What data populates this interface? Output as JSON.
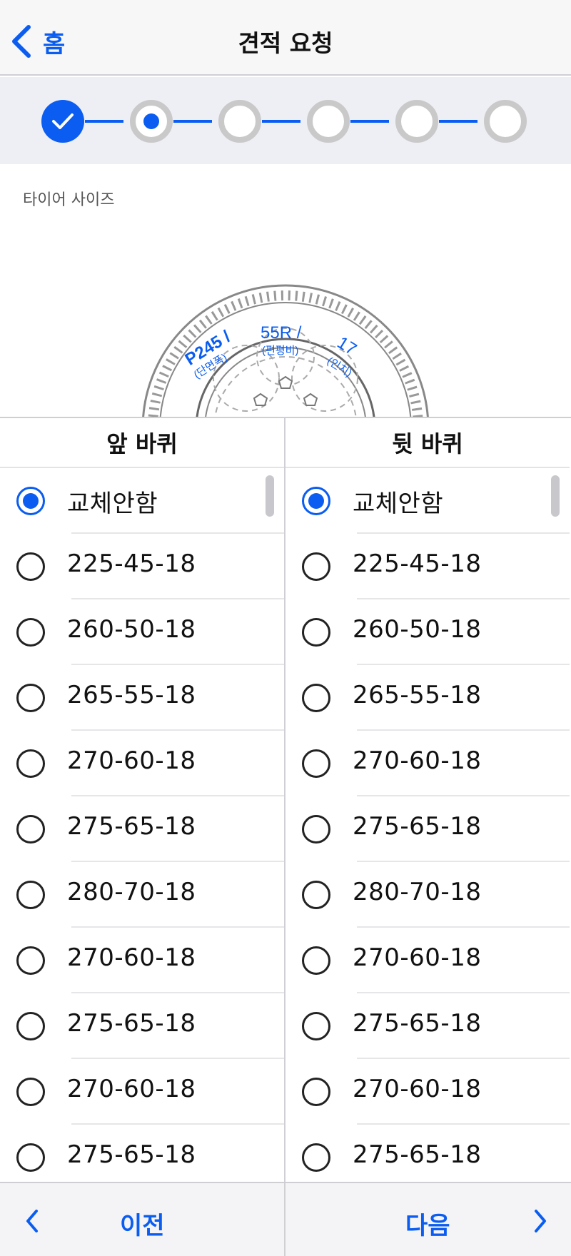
{
  "navbar": {
    "back_label": "홈",
    "title": "견적 요청"
  },
  "stepper": {
    "steps": [
      "done",
      "current",
      "pending",
      "pending",
      "pending",
      "pending"
    ]
  },
  "tire_section": {
    "label": "타이어 사이즈",
    "width_value": "P245 /",
    "width_caption": "(단면폭)",
    "ratio_value": "55R /",
    "ratio_caption": "(편평비)",
    "rim_value": "17",
    "rim_caption": "(인치)"
  },
  "front": {
    "header": "앞 바퀴",
    "selected_index": 0,
    "options": [
      "교체안함",
      "225-45-18",
      "260-50-18",
      "265-55-18",
      "270-60-18",
      "275-65-18",
      "280-70-18",
      "270-60-18",
      "275-65-18",
      "270-60-18",
      "275-65-18"
    ]
  },
  "rear": {
    "header": "뒷 바퀴",
    "selected_index": 0,
    "options": [
      "교체안함",
      "225-45-18",
      "260-50-18",
      "265-55-18",
      "270-60-18",
      "275-65-18",
      "280-70-18",
      "270-60-18",
      "275-65-18",
      "270-60-18",
      "275-65-18"
    ]
  },
  "footer": {
    "prev_label": "이전",
    "next_label": "다음"
  },
  "colors": {
    "accent": "#0a5df0",
    "pending_ring": "#c9c9c9"
  }
}
